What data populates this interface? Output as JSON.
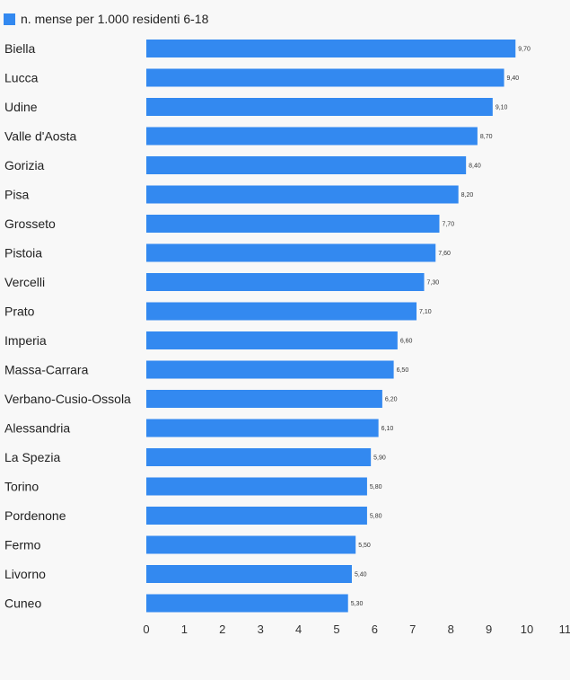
{
  "chart_data": {
    "type": "bar",
    "orientation": "horizontal",
    "legend_position": "top-left",
    "grid": false,
    "series": [
      {
        "name": "n. mense per 1.000 residenti 6-18",
        "color": "#3389f0",
        "values": [
          9.7,
          9.4,
          9.1,
          8.7,
          8.4,
          8.2,
          7.7,
          7.6,
          7.3,
          7.1,
          6.6,
          6.5,
          6.2,
          6.1,
          5.9,
          5.8,
          5.8,
          5.5,
          5.4,
          5.3
        ],
        "value_labels": [
          "9,70",
          "9,40",
          "9,10",
          "8,70",
          "8,40",
          "8,20",
          "7,70",
          "7,60",
          "7,30",
          "7,10",
          "6,60",
          "6,50",
          "6,20",
          "6,10",
          "5,90",
          "5,80",
          "5,80",
          "5,50",
          "5,40",
          "5,30"
        ]
      }
    ],
    "categories": [
      "Biella",
      "Lucca",
      "Udine",
      "Valle d'Aosta",
      "Gorizia",
      "Pisa",
      "Grosseto",
      "Pistoia",
      "Vercelli",
      "Prato",
      "Imperia",
      "Massa-Carrara",
      "Verbano-Cusio-Ossola",
      "Alessandria",
      "La Spezia",
      "Torino",
      "Pordenone",
      "Fermo",
      "Livorno",
      "Cuneo"
    ],
    "xlim": [
      0,
      11
    ],
    "xticks": [
      "0",
      "1",
      "2",
      "3",
      "4",
      "5",
      "6",
      "7",
      "8",
      "9",
      "10",
      "11"
    ]
  }
}
